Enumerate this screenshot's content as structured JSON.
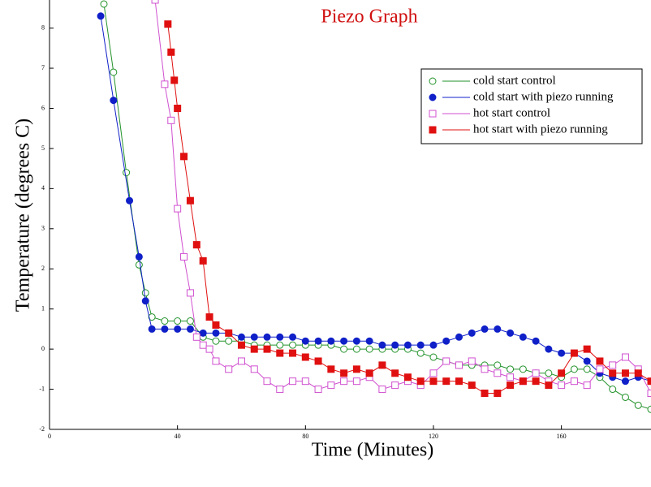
{
  "chart_data": {
    "type": "line",
    "title": "Piezo Graph",
    "x_label": "Time (Minutes)",
    "y_label": "Temperature (degrees C)",
    "xlim": [
      0,
      188
    ],
    "ylim": [
      -2,
      8.7
    ],
    "xticks": [
      0,
      40,
      80,
      120,
      160
    ],
    "yticks": [
      -2,
      -1,
      0,
      1,
      2,
      3,
      4,
      5,
      6,
      7,
      8
    ],
    "legend": "upper right",
    "series": [
      {
        "name": "cold start control",
        "color": "#22922a",
        "marker": "circle",
        "filled": false,
        "x": [
          17,
          20,
          24,
          28,
          30,
          32,
          36,
          40,
          44,
          48,
          52,
          56,
          60,
          64,
          68,
          72,
          76,
          80,
          84,
          88,
          92,
          96,
          100,
          104,
          108,
          112,
          116,
          120,
          124,
          128,
          132,
          136,
          140,
          144,
          148,
          152,
          156,
          160,
          164,
          168,
          172,
          176,
          180,
          184,
          188
        ],
        "values": [
          8.6,
          6.9,
          4.4,
          2.1,
          1.4,
          0.8,
          0.7,
          0.7,
          0.7,
          0.3,
          0.2,
          0.2,
          0.2,
          0.1,
          0.1,
          0.1,
          0.1,
          0.1,
          0.1,
          0.1,
          0,
          0,
          0,
          0,
          0,
          0,
          -0.1,
          -0.2,
          -0.3,
          -0.4,
          -0.4,
          -0.4,
          -0.4,
          -0.5,
          -0.5,
          -0.6,
          -0.6,
          -0.7,
          -0.5,
          -0.5,
          -0.7,
          -1.0,
          -1.2,
          -1.4,
          -1.5
        ]
      },
      {
        "name": "cold start with piezo running",
        "color": "#1020c8",
        "marker": "circle",
        "filled": true,
        "x": [
          16,
          20,
          25,
          28,
          30,
          32,
          36,
          40,
          44,
          48,
          52,
          56,
          60,
          64,
          68,
          72,
          76,
          80,
          84,
          88,
          92,
          96,
          100,
          104,
          108,
          112,
          116,
          120,
          124,
          128,
          132,
          136,
          140,
          144,
          148,
          152,
          156,
          160,
          164,
          168,
          172,
          176,
          180,
          184,
          188
        ],
        "values": [
          8.3,
          6.2,
          3.7,
          2.3,
          1.2,
          0.5,
          0.5,
          0.5,
          0.5,
          0.4,
          0.4,
          0.4,
          0.3,
          0.3,
          0.3,
          0.3,
          0.3,
          0.2,
          0.2,
          0.2,
          0.2,
          0.2,
          0.2,
          0.1,
          0.1,
          0.1,
          0.1,
          0.1,
          0.2,
          0.3,
          0.4,
          0.5,
          0.5,
          0.4,
          0.3,
          0.2,
          0,
          -0.1,
          -0.1,
          -0.3,
          -0.6,
          -0.7,
          -0.8,
          -0.7,
          -0.8
        ]
      },
      {
        "name": "hot start control",
        "color": "#d050d0",
        "marker": "square",
        "filled": false,
        "x": [
          33,
          36,
          38,
          40,
          42,
          44,
          46,
          48,
          50,
          52,
          56,
          60,
          64,
          68,
          72,
          76,
          80,
          84,
          88,
          92,
          96,
          100,
          104,
          108,
          112,
          116,
          120,
          124,
          128,
          132,
          136,
          140,
          144,
          148,
          152,
          156,
          160,
          164,
          168,
          172,
          176,
          180,
          184,
          188
        ],
        "values": [
          8.7,
          6.6,
          5.7,
          3.5,
          2.3,
          1.4,
          0.3,
          0.1,
          0,
          -0.3,
          -0.5,
          -0.3,
          -0.5,
          -0.8,
          -1.0,
          -0.8,
          -0.8,
          -1.0,
          -0.9,
          -0.8,
          -0.8,
          -0.7,
          -1.0,
          -0.9,
          -0.8,
          -0.9,
          -0.6,
          -0.3,
          -0.4,
          -0.3,
          -0.5,
          -0.6,
          -0.7,
          -0.8,
          -0.6,
          -0.8,
          -0.9,
          -0.8,
          -0.9,
          -0.5,
          -0.4,
          -0.2,
          -0.5,
          -1.1
        ]
      },
      {
        "name": "hot start with piezo running",
        "color": "#e01010",
        "marker": "square",
        "filled": true,
        "x": [
          37,
          38,
          39,
          40,
          42,
          44,
          46,
          48,
          50,
          52,
          56,
          60,
          64,
          68,
          72,
          76,
          80,
          84,
          88,
          92,
          96,
          100,
          104,
          108,
          112,
          116,
          120,
          124,
          128,
          132,
          136,
          140,
          144,
          148,
          152,
          156,
          160,
          164,
          168,
          172,
          176,
          180,
          184,
          188
        ],
        "values": [
          8.1,
          7.4,
          6.7,
          6.0,
          4.8,
          3.7,
          2.6,
          2.2,
          0.8,
          0.6,
          0.4,
          0.1,
          0,
          0,
          -0.1,
          -0.1,
          -0.2,
          -0.3,
          -0.5,
          -0.6,
          -0.5,
          -0.6,
          -0.4,
          -0.6,
          -0.7,
          -0.8,
          -0.8,
          -0.8,
          -0.8,
          -0.9,
          -1.1,
          -1.1,
          -0.9,
          -0.8,
          -0.8,
          -0.9,
          -0.6,
          -0.1,
          0,
          -0.3,
          -0.6,
          -0.6,
          -0.6,
          -0.8
        ]
      }
    ]
  }
}
